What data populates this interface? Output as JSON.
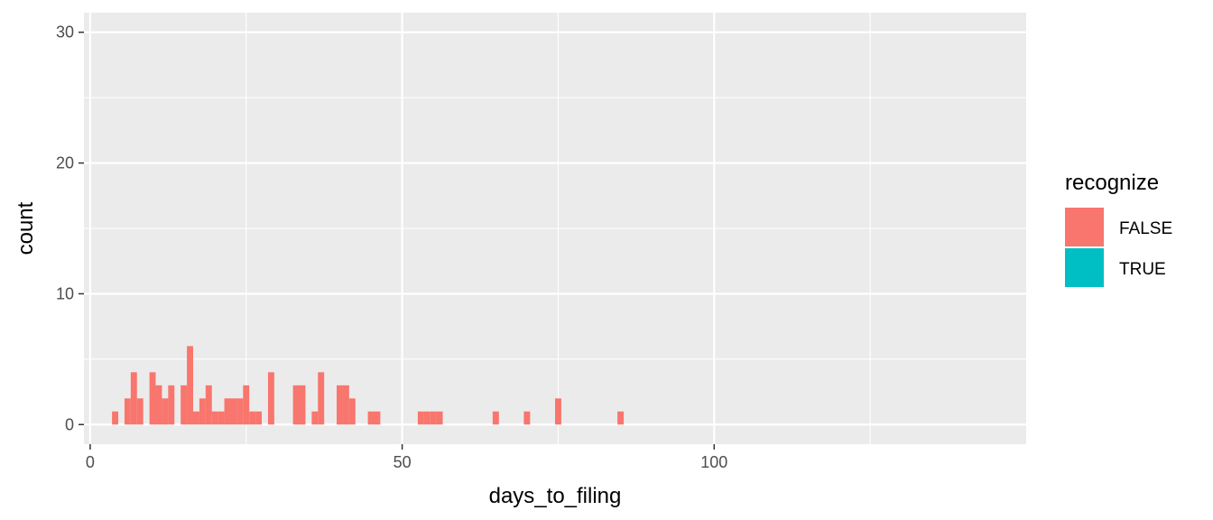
{
  "chart_data": {
    "type": "bar",
    "subtype": "stacked-histogram",
    "title": "",
    "xlabel": "days_to_filing",
    "ylabel": "count",
    "xlim": [
      -1,
      150
    ],
    "ylim": [
      -1.5,
      31.5
    ],
    "x_ticks": [
      0,
      50,
      100
    ],
    "y_ticks": [
      0,
      10,
      20,
      30
    ],
    "grid": true,
    "bin_width": 1,
    "legend": {
      "title": "recognize",
      "position": "right",
      "entries": [
        {
          "label": "FALSE",
          "color": "#F8766D"
        },
        {
          "label": "TRUE",
          "color": "#00BFC4"
        }
      ]
    },
    "x": [
      4,
      6,
      7,
      8,
      10,
      11,
      12,
      13,
      15,
      16,
      17,
      18,
      19,
      20,
      21,
      22,
      23,
      24,
      25,
      26,
      27,
      28,
      29,
      30,
      31,
      32,
      33,
      34,
      35,
      36,
      37,
      38,
      39,
      40,
      41,
      42,
      43,
      44,
      45,
      46,
      47,
      48,
      49,
      50,
      51,
      52,
      53,
      54,
      55,
      56,
      57,
      58,
      59,
      60,
      61,
      62,
      63,
      64,
      65,
      66,
      67,
      68,
      69,
      70,
      71,
      72,
      73,
      74,
      75,
      76,
      77,
      78,
      79,
      80,
      81,
      82,
      83,
      84,
      85,
      86,
      87,
      88,
      89,
      90,
      91,
      92,
      93,
      94,
      95,
      96,
      97,
      98,
      99,
      100,
      101,
      102,
      103,
      104,
      105,
      106,
      107,
      108,
      109,
      110,
      111,
      112,
      113,
      114,
      115,
      116,
      117,
      118,
      119,
      120,
      121,
      122,
      123,
      124,
      125,
      126,
      127,
      128,
      129,
      130,
      131,
      132,
      133,
      134,
      135,
      136,
      137,
      138,
      139,
      140,
      141,
      142
    ],
    "series": [
      {
        "name": "FALSE",
        "values": [
          1,
          2,
          4,
          2,
          4,
          3,
          2,
          3,
          3,
          6,
          1,
          2,
          3,
          1,
          1,
          2,
          2,
          2,
          3,
          1,
          1,
          0,
          4,
          0,
          0,
          0,
          3,
          3,
          0,
          1,
          4,
          0,
          0,
          3,
          3,
          2,
          0,
          0,
          1,
          1,
          0,
          0,
          0,
          0,
          0,
          0,
          1,
          1,
          1,
          1,
          0,
          0,
          0,
          0,
          0,
          0,
          0,
          0,
          1,
          0,
          0,
          0,
          0,
          1,
          0,
          0,
          0,
          0,
          2,
          0,
          0,
          0,
          0,
          0,
          0,
          0,
          0,
          0,
          1,
          0,
          0,
          0,
          0,
          0,
          0,
          0,
          0,
          0,
          0,
          0,
          0,
          0,
          0,
          0,
          0,
          0,
          0,
          0,
          0,
          0,
          0,
          0,
          0,
          0,
          0,
          0,
          0,
          0,
          0,
          0,
          0,
          0,
          0,
          0,
          0,
          0,
          0,
          0,
          0,
          0,
          0,
          0,
          0,
          0,
          0,
          0,
          0,
          0,
          0,
          0,
          0,
          0,
          0,
          0,
          0,
          0
        ]
      },
      {
        "name": "TRUE",
        "values": [
          0,
          0,
          0,
          0,
          0,
          0,
          0,
          0,
          0,
          0,
          0,
          0,
          0,
          0,
          0,
          0,
          0,
          0,
          0,
          0,
          0,
          0,
          0,
          0,
          0,
          0,
          0,
          0,
          0,
          0,
          0,
          0,
          0,
          0,
          0,
          0,
          0,
          0,
          0,
          0,
          0,
          0,
          0,
          0,
          0,
          0,
          0,
          0,
          0,
          0,
          0,
          0,
          0,
          0,
          0,
          0,
          0,
          0,
          0,
          0,
          0,
          0,
          0,
          0,
          0,
          0,
          0,
          0,
          0,
          0,
          0,
          0,
          0,
          0,
          0,
          0,
          0,
          0,
          0,
          0,
          0,
          0,
          0,
          0,
          0,
          0,
          0,
          0,
          0,
          0,
          0,
          0,
          0,
          0,
          0,
          0,
          0,
          0,
          0,
          0,
          0,
          0,
          0,
          0,
          0,
          0,
          0,
          0,
          0,
          0,
          0,
          0,
          0,
          0,
          0,
          0,
          0,
          0,
          0,
          0,
          0,
          0,
          0,
          0,
          0,
          0,
          0,
          0,
          0,
          0,
          0,
          0,
          0,
          0,
          0,
          0
        ]
      }
    ]
  }
}
